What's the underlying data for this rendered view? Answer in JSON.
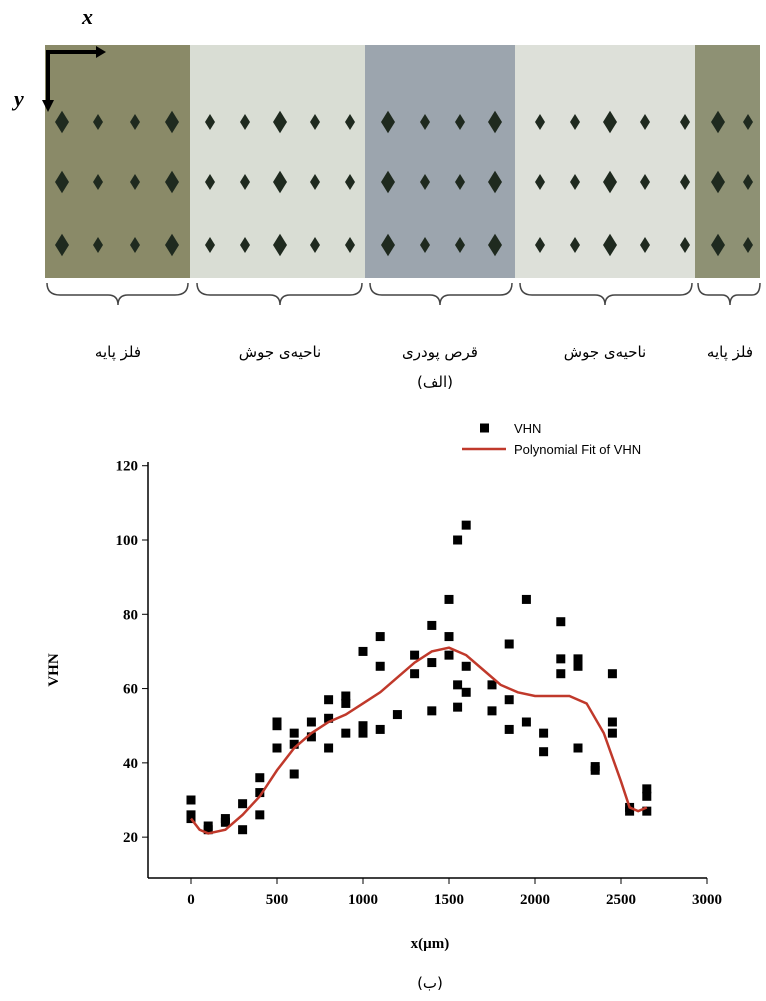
{
  "micrograph": {
    "axis_x": "x",
    "axis_y": "y",
    "regions": [
      "فلز پایه",
      "ناحیه‌ی جوش",
      "قرص پودری",
      "ناحیه‌ی جوش",
      "فلز پایه"
    ],
    "caption": "(الف)"
  },
  "chart_data": {
    "type": "scatter",
    "x_label": "x(µm)",
    "y_label": "VHN",
    "xlim": [
      -250,
      3000
    ],
    "xticks": [
      0,
      500,
      1000,
      1500,
      2000,
      2500,
      3000
    ],
    "ylim": [
      9,
      121
    ],
    "yticks": [
      20,
      40,
      60,
      80,
      100,
      120
    ],
    "grid": false,
    "legend": "top-right",
    "series": [
      {
        "name": "VHN",
        "color": "#000000",
        "style": "marker",
        "x": [
          0,
          0,
          0,
          100,
          100,
          200,
          200,
          300,
          300,
          400,
          400,
          400,
          500,
          500,
          500,
          600,
          600,
          600,
          700,
          700,
          800,
          800,
          800,
          900,
          900,
          900,
          1000,
          1000,
          1000,
          1100,
          1100,
          1100,
          1200,
          1300,
          1300,
          1400,
          1400,
          1400,
          1500,
          1500,
          1500,
          1550,
          1600,
          1550,
          1550,
          1600,
          1600,
          1750,
          1750,
          1850,
          1850,
          1850,
          1950,
          1950,
          2050,
          2050,
          2150,
          2150,
          2150,
          2250,
          2250,
          2250,
          2350,
          2350,
          2450,
          2450,
          2450,
          2550,
          2550,
          2650,
          2650,
          2650
        ],
        "values": [
          30,
          26,
          25,
          22,
          23,
          25,
          24,
          22,
          29,
          36,
          32,
          26,
          51,
          50,
          44,
          48,
          45,
          37,
          51,
          47,
          57,
          52,
          44,
          58,
          56,
          48,
          70,
          50,
          48,
          74,
          66,
          49,
          53,
          69,
          64,
          77,
          67,
          54,
          84,
          74,
          69,
          100,
          104,
          61,
          55,
          66,
          59,
          61,
          54,
          72,
          57,
          49,
          84,
          51,
          48,
          43,
          78,
          68,
          64,
          68,
          66,
          44,
          39,
          38,
          64,
          51,
          48,
          28,
          27,
          33,
          31,
          27
        ]
      },
      {
        "name": "Polynomial Fit of VHN",
        "color": "#c0392b",
        "style": "line",
        "x": [
          0,
          50,
          100,
          200,
          300,
          400,
          500,
          600,
          700,
          800,
          900,
          1000,
          1100,
          1200,
          1300,
          1400,
          1500,
          1600,
          1700,
          1800,
          1900,
          2000,
          2100,
          2200,
          2300,
          2400,
          2500,
          2550,
          2600,
          2650
        ],
        "values": [
          25,
          22,
          21,
          22,
          26,
          31,
          38,
          44,
          48,
          51,
          53,
          56,
          59,
          63,
          67,
          70,
          71,
          69,
          65,
          61,
          59,
          58,
          58,
          58,
          56,
          48,
          35,
          28,
          27,
          28
        ]
      }
    ]
  },
  "figure_caption": "(ب)"
}
